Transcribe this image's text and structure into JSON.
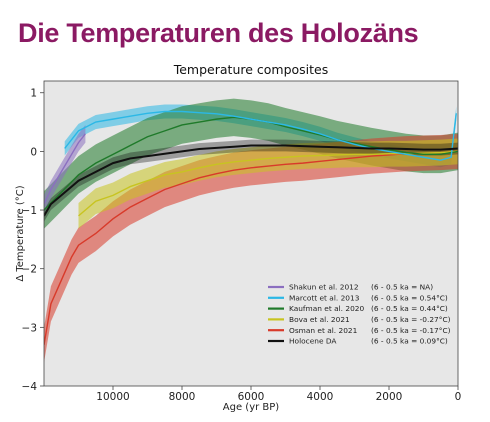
{
  "slide_title": "Die Temperaturen des Holozäns",
  "chart_data": {
    "type": "line",
    "title": "Temperature composites",
    "xlabel": "Age (yr BP)",
    "ylabel": "Δ Temperature (°C)",
    "xlim": [
      12000,
      0
    ],
    "ylim": [
      -4,
      1.2
    ],
    "x_ticks": [
      10000,
      8000,
      6000,
      4000,
      2000,
      0
    ],
    "x_tick_labels": [
      "10000",
      "8000",
      "6000",
      "4000",
      "2000",
      "0"
    ],
    "y_ticks": [
      1,
      0,
      -1,
      -2,
      -3,
      -4
    ],
    "y_tick_labels": [
      "1",
      "0",
      "−1",
      "−2",
      "−3",
      "−4"
    ],
    "grid": false,
    "legend_position": "lower-right",
    "colors": {
      "plot_bg": "#e7e7e7",
      "shakun": "#8b6fc0",
      "marcott": "#2bb8e6",
      "kaufman": "#1f7a2a",
      "bova": "#c8c420",
      "osman": "#d83a2a",
      "holocene_da": "#111111"
    },
    "series": [
      {
        "key": "shakun",
        "name": "Shakun et al. 2012",
        "note": "(6 - 0.5 ka = NA)",
        "x": [
          12000,
          11800,
          11500,
          11200,
          11000,
          10800
        ],
        "y": [
          -0.9,
          -0.65,
          -0.35,
          -0.05,
          0.15,
          0.3
        ],
        "band": 0.15
      },
      {
        "key": "marcott",
        "name": "Marcott et al. 2013",
        "note": "(6 - 0.5 ka = 0.54°C)",
        "x": [
          11400,
          11000,
          10500,
          10000,
          9500,
          9000,
          8500,
          8000,
          7500,
          7000,
          6500,
          6000,
          5500,
          5000,
          4500,
          4000,
          3500,
          3000,
          2500,
          2000,
          1500,
          1000,
          500,
          200,
          50
        ],
        "y": [
          0.05,
          0.35,
          0.5,
          0.55,
          0.6,
          0.65,
          0.68,
          0.68,
          0.66,
          0.64,
          0.6,
          0.55,
          0.5,
          0.45,
          0.38,
          0.3,
          0.2,
          0.12,
          0.05,
          0.0,
          -0.05,
          -0.1,
          -0.15,
          -0.1,
          0.65
        ],
        "band": 0.12
      },
      {
        "key": "kaufman",
        "name": "Kaufman et al. 2020",
        "note": "(6 - 0.5 ka = 0.44°C)",
        "x": [
          12000,
          11500,
          11000,
          10500,
          10000,
          9500,
          9000,
          8500,
          8000,
          7500,
          7000,
          6500,
          6000,
          5500,
          5000,
          4500,
          4000,
          3500,
          3000,
          2500,
          2000,
          1500,
          1000,
          500,
          0
        ],
        "y": [
          -1.0,
          -0.7,
          -0.4,
          -0.2,
          -0.05,
          0.1,
          0.25,
          0.35,
          0.45,
          0.5,
          0.55,
          0.58,
          0.55,
          0.5,
          0.42,
          0.35,
          0.28,
          0.2,
          0.14,
          0.08,
          0.03,
          -0.02,
          -0.05,
          -0.05,
          0.0
        ],
        "band": 0.32
      },
      {
        "key": "bova",
        "name": "Bova et al. 2021",
        "note": "(6 - 0.5 ka = -0.27°C)",
        "x": [
          11000,
          10500,
          10000,
          9500,
          9000,
          8500,
          8000,
          7500,
          7000,
          6500,
          6000,
          5500,
          5000,
          4500,
          4000,
          3500,
          3000,
          2500,
          2000,
          1500,
          1000,
          500,
          0
        ],
        "y": [
          -1.1,
          -0.85,
          -0.75,
          -0.6,
          -0.5,
          -0.4,
          -0.35,
          -0.28,
          -0.22,
          -0.18,
          -0.15,
          -0.12,
          -0.1,
          -0.08,
          -0.07,
          -0.06,
          -0.05,
          -0.05,
          -0.04,
          -0.04,
          -0.03,
          -0.02,
          0.0
        ],
        "band": 0.22
      },
      {
        "key": "osman",
        "name": "Osman et al. 2021",
        "note": "(6 - 0.5 ka = -0.17°C)",
        "x": [
          12000,
          11800,
          11500,
          11200,
          11000,
          10500,
          10000,
          9500,
          9000,
          8500,
          8000,
          7500,
          7000,
          6500,
          6000,
          5500,
          5000,
          4500,
          4000,
          3500,
          3000,
          2500,
          2000,
          1500,
          1000,
          500,
          0
        ],
        "y": [
          -3.3,
          -2.6,
          -2.2,
          -1.8,
          -1.6,
          -1.4,
          -1.15,
          -0.95,
          -0.8,
          -0.65,
          -0.55,
          -0.45,
          -0.38,
          -0.32,
          -0.28,
          -0.25,
          -0.22,
          -0.2,
          -0.17,
          -0.14,
          -0.11,
          -0.08,
          -0.06,
          -0.04,
          -0.03,
          -0.02,
          0.0
        ],
        "band": 0.3
      },
      {
        "key": "holocene_da",
        "name": "Holocene DA",
        "note": "(6 - 0.5 ka = 0.09°C)",
        "x": [
          12000,
          11800,
          11500,
          11200,
          11000,
          10500,
          10000,
          9500,
          9000,
          8500,
          8000,
          7500,
          7000,
          6500,
          6000,
          5500,
          5000,
          4500,
          4000,
          3500,
          3000,
          2500,
          2000,
          1500,
          1000,
          500,
          0
        ],
        "y": [
          -1.1,
          -0.9,
          -0.75,
          -0.6,
          -0.5,
          -0.35,
          -0.2,
          -0.12,
          -0.08,
          -0.04,
          0.0,
          0.04,
          0.06,
          0.08,
          0.1,
          0.1,
          0.1,
          0.09,
          0.08,
          0.07,
          0.06,
          0.05,
          0.05,
          0.04,
          0.03,
          0.03,
          0.05
        ],
        "band": 0.1
      }
    ]
  }
}
